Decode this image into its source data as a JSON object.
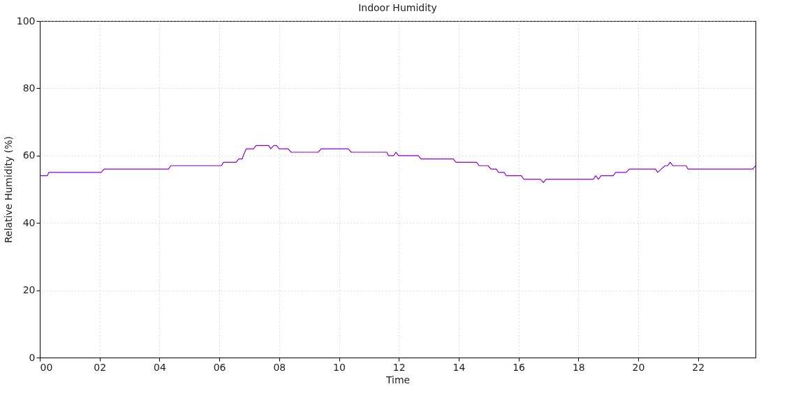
{
  "chart_data": {
    "type": "line",
    "title": "Indoor Humidity",
    "xlabel": "Time",
    "ylabel": "Relative Humidity (%)",
    "x": [
      0,
      0.25,
      0.3,
      2.05,
      2.15,
      4.3,
      4.38,
      6.07,
      6.14,
      6.56,
      6.65,
      6.77,
      6.8,
      6.9,
      7.14,
      7.23,
      7.65,
      7.72,
      7.82,
      7.91,
      8.0,
      8.3,
      8.4,
      9.31,
      9.4,
      10.31,
      10.41,
      11.6,
      11.65,
      11.83,
      11.9,
      11.99,
      12.65,
      12.74,
      13.82,
      13.91,
      14.6,
      14.68,
      14.98,
      15.08,
      15.26,
      15.33,
      15.52,
      15.59,
      16.1,
      16.17,
      16.73,
      16.83,
      16.92,
      18.5,
      18.58,
      18.67,
      18.76,
      19.16,
      19.25,
      19.6,
      19.7,
      20.58,
      20.65,
      20.77,
      20.9,
      20.98,
      21.07,
      21.16,
      21.6,
      21.66,
      23.83,
      23.92
    ],
    "series": [
      {
        "color": "#9400d3",
        "values": [
          54,
          54,
          55,
          55,
          56,
          56,
          57,
          57,
          58,
          58,
          59,
          59,
          60,
          62,
          62,
          63,
          63,
          62,
          63,
          63,
          62,
          62,
          61,
          61,
          62,
          62,
          61,
          61,
          60,
          60,
          61,
          60,
          60,
          59,
          59,
          58,
          58,
          57,
          57,
          56,
          56,
          55,
          55,
          54,
          54,
          53,
          53,
          52,
          53,
          53,
          54,
          53,
          54,
          54,
          55,
          55,
          56,
          56,
          55,
          56,
          57,
          57,
          58,
          57,
          57,
          56,
          56,
          57
        ]
      }
    ],
    "xlim": [
      0,
      23.92
    ],
    "xticks": [
      {
        "value": 0,
        "label": "00"
      },
      {
        "value": 2,
        "label": "02"
      },
      {
        "value": 4,
        "label": "04"
      },
      {
        "value": 6,
        "label": "06"
      },
      {
        "value": 8,
        "label": "08"
      },
      {
        "value": 10,
        "label": "10"
      },
      {
        "value": 12,
        "label": "12"
      },
      {
        "value": 14,
        "label": "14"
      },
      {
        "value": 16,
        "label": "16"
      },
      {
        "value": 18,
        "label": "18"
      },
      {
        "value": 20,
        "label": "20"
      },
      {
        "value": 22,
        "label": "22"
      }
    ],
    "ylim": [
      0,
      100
    ],
    "yticks": [
      0,
      20,
      40,
      60,
      80,
      100
    ],
    "grid": true,
    "legend": false,
    "marker": "none",
    "line_style": "solid"
  }
}
